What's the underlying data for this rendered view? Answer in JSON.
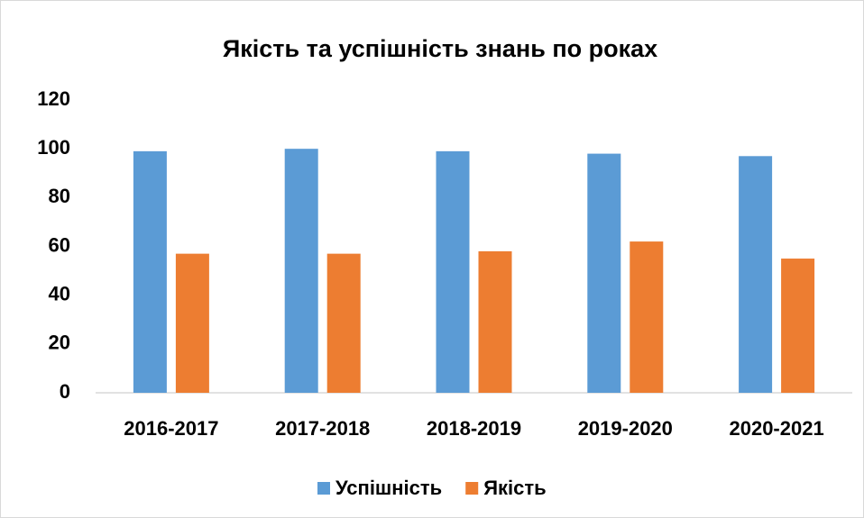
{
  "chart_data": {
    "type": "bar",
    "title": "Якість та успішність знань по роках",
    "categories": [
      "2016-2017",
      "2017-2018",
      "2018-2019",
      "2019-2020",
      "2020-2021"
    ],
    "series": [
      {
        "name": "Успішність",
        "color": "#5b9bd5",
        "values": [
          99,
          100,
          99,
          98,
          97
        ]
      },
      {
        "name": "Якість",
        "color": "#ed7d31",
        "values": [
          57,
          57,
          58,
          62,
          55
        ]
      }
    ],
    "ylim": [
      0,
      120
    ],
    "yticks": [
      0,
      20,
      40,
      60,
      80,
      100,
      120
    ],
    "grid": false,
    "legend": "bottom"
  }
}
